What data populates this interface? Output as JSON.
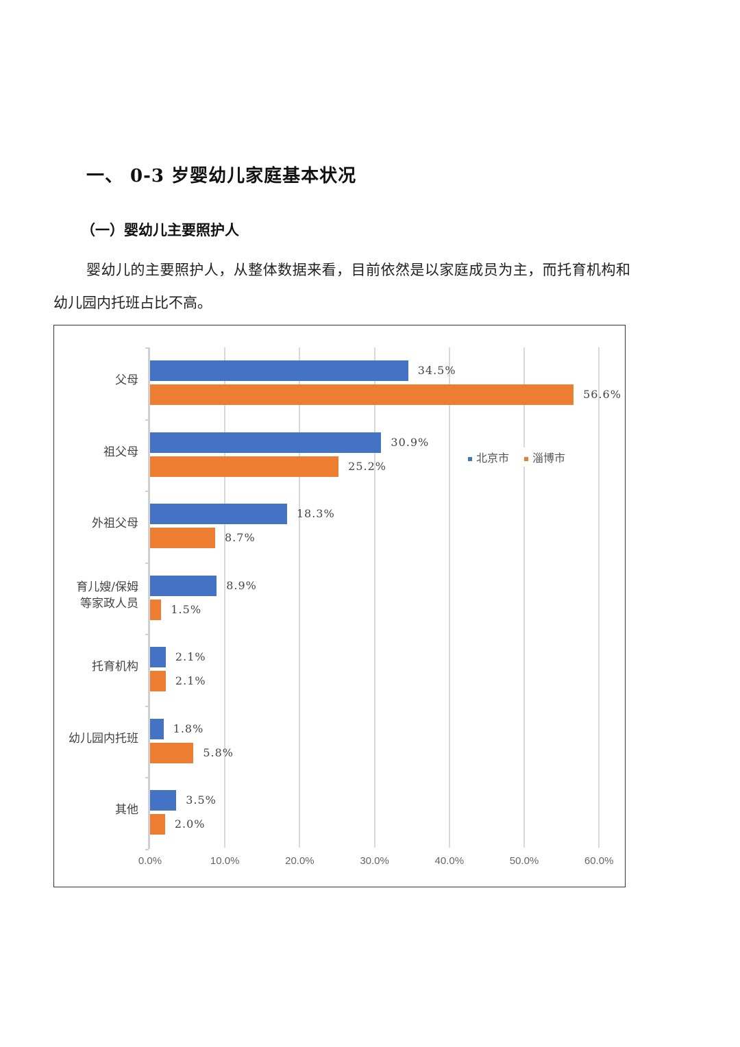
{
  "document": {
    "heading1": "一、 0-3 岁婴幼儿家庭基本状况",
    "heading2": "（一）婴幼儿主要照护人",
    "paragraph": "婴幼儿的主要照护人，从整体数据来看，目前依然是以家庭成员为主，而托育机构和幼儿园内托班占比不高。"
  },
  "colors": {
    "beijing": "#4472c4",
    "zibo": "#ed7d31",
    "grid": "#d9d9d9"
  },
  "chart_data": {
    "type": "bar",
    "orientation": "horizontal",
    "title": "",
    "xlabel": "",
    "ylabel": "",
    "xlim": [
      0,
      60
    ],
    "x_ticks": [
      "0.0%",
      "10.0%",
      "20.0%",
      "30.0%",
      "40.0%",
      "50.0%",
      "60.0%"
    ],
    "grid": true,
    "legend_position": "upper right inside",
    "categories": [
      "父母",
      "祖父母",
      "外祖父母",
      "育儿嫂/保姆等家政人员",
      "托育机构",
      "幼儿园内托班",
      "其他"
    ],
    "category_lines": [
      [
        "父母"
      ],
      [
        "祖父母"
      ],
      [
        "外祖父母"
      ],
      [
        "育儿嫂/保姆",
        "等家政人员"
      ],
      [
        "托育机构"
      ],
      [
        "幼儿园内托班"
      ],
      [
        "其他"
      ]
    ],
    "series": [
      {
        "name": "北京市",
        "color": "#4472c4",
        "values": [
          34.5,
          30.9,
          18.3,
          8.9,
          2.1,
          1.8,
          3.5
        ],
        "labels": [
          "34.5%",
          "30.9%",
          "18.3%",
          "8.9%",
          "2.1%",
          "1.8%",
          "3.5%"
        ]
      },
      {
        "name": "淄博市",
        "color": "#ed7d31",
        "values": [
          56.6,
          25.2,
          8.7,
          1.5,
          2.1,
          5.8,
          2.0
        ],
        "labels": [
          "56.6%",
          "25.2%",
          "8.7%",
          "1.5%",
          "2.1%",
          "5.8%",
          "2.0%"
        ]
      }
    ]
  }
}
